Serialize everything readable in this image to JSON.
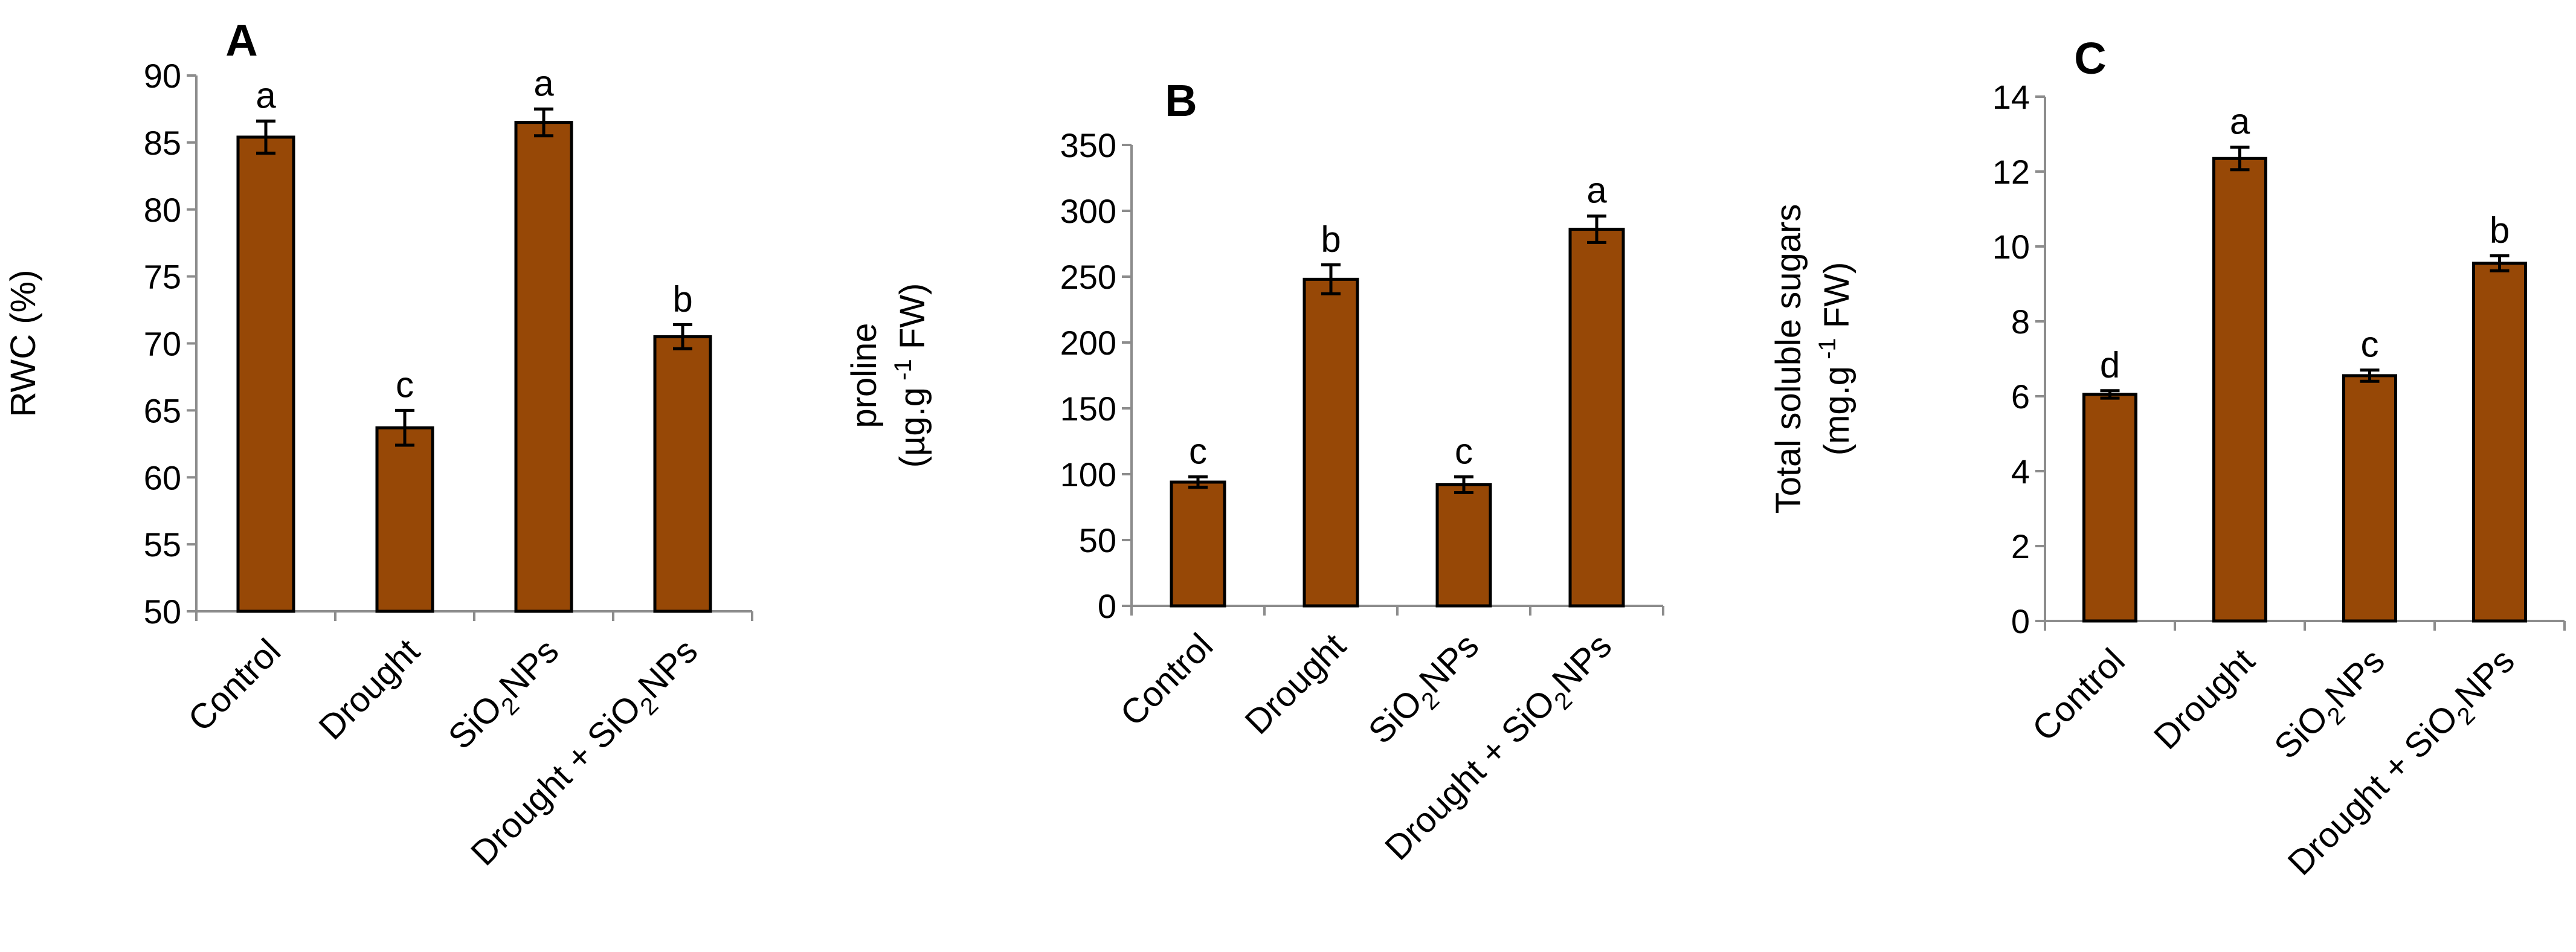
{
  "colors": {
    "bar_fill": "#974806",
    "bar_edge": "#000000",
    "axis": "#8c8c8c"
  },
  "chart_data": [
    {
      "type": "bar",
      "panel_label": "A",
      "ylabel_lines": [
        "RWC (%)"
      ],
      "ylim": [
        50,
        90
      ],
      "yticks": [
        50,
        55,
        60,
        65,
        70,
        75,
        80,
        85,
        90
      ],
      "categories": [
        {
          "label": "Control"
        },
        {
          "label": "Drought"
        },
        {
          "label": "SiO",
          "sub": "2",
          "tail": "NPs"
        },
        {
          "label": "Drought +  SiO",
          "sub": "2",
          "tail": "NPs"
        }
      ],
      "values": [
        85.4,
        63.7,
        86.5,
        70.5
      ],
      "errors": [
        1.2,
        1.3,
        1.0,
        0.9
      ],
      "letters": [
        "a",
        "c",
        "a",
        "b"
      ],
      "grid": false
    },
    {
      "type": "bar",
      "panel_label": "B",
      "ylabel_lines": [
        [
          {
            "t": "proline"
          }
        ],
        [
          {
            "t": "(µg.g"
          },
          {
            "t": " -1",
            "sup": true
          },
          {
            "t": " FW)"
          }
        ]
      ],
      "ylim": [
        0,
        350
      ],
      "yticks": [
        0,
        50,
        100,
        150,
        200,
        250,
        300,
        350
      ],
      "categories": [
        {
          "label": "Control"
        },
        {
          "label": "Drought"
        },
        {
          "label": "SiO",
          "sub": "2",
          "tail": "NPs"
        },
        {
          "label": "Drought +  SiO",
          "sub": "2",
          "tail": "NPs"
        }
      ],
      "values": [
        94,
        248,
        92,
        286
      ],
      "errors": [
        4,
        11,
        6,
        10
      ],
      "letters": [
        "c",
        "b",
        "c",
        "a"
      ],
      "grid": false
    },
    {
      "type": "bar",
      "panel_label": "C",
      "ylabel_lines": [
        [
          {
            "t": "Total soluble sugars"
          }
        ],
        [
          {
            "t": "(mg.g"
          },
          {
            "t": " -1",
            "sup": true
          },
          {
            "t": " FW)"
          }
        ]
      ],
      "ylim": [
        0,
        14
      ],
      "yticks": [
        0,
        2,
        4,
        6,
        8,
        10,
        12,
        14
      ],
      "categories": [
        {
          "label": "Control"
        },
        {
          "label": "Drought"
        },
        {
          "label": "SiO",
          "sub": "2",
          "tail": "NPs"
        },
        {
          "label": "Drought +  SiO",
          "sub": "2",
          "tail": "NPs"
        }
      ],
      "values": [
        6.05,
        12.35,
        6.55,
        9.55
      ],
      "errors": [
        0.1,
        0.3,
        0.15,
        0.2
      ],
      "letters": [
        "d",
        "a",
        "c",
        "b"
      ],
      "grid": false
    }
  ]
}
